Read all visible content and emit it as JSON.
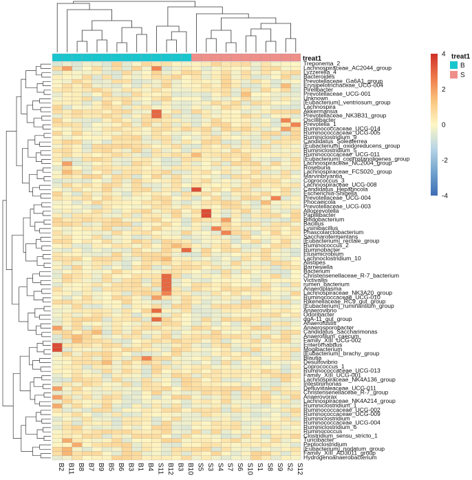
{
  "chart_data": {
    "type": "heatmap",
    "title": "",
    "columns": [
      "B2",
      "B11",
      "B8",
      "B7",
      "B9",
      "B5",
      "B6",
      "B3",
      "B1",
      "B4",
      "S11",
      "B12",
      "B3",
      "B10",
      "S5",
      "S3",
      "S4",
      "S7",
      "S6",
      "S10",
      "S1",
      "S8",
      "S9",
      "S2",
      "S12"
    ],
    "column_groups": [
      "B",
      "B",
      "B",
      "B",
      "B",
      "B",
      "B",
      "B",
      "B",
      "B",
      "B",
      "B",
      "B",
      "B",
      "S",
      "S",
      "S",
      "S",
      "S",
      "S",
      "S",
      "S",
      "S",
      "S",
      "S"
    ],
    "annotation": {
      "title": "treat1",
      "levels": [
        {
          "name": "B",
          "color": "#19C6CE"
        },
        {
          "name": "S",
          "color": "#EE8F8A"
        }
      ]
    },
    "color_scale": {
      "min": -4,
      "max": 4,
      "ticks": [
        4,
        2,
        0,
        -2,
        -4
      ],
      "colors": [
        "#3C6DB4",
        "#73A4CE",
        "#B8D6E6",
        "#FEF6C4",
        "#FBC57F",
        "#EE7A4A",
        "#CF3027"
      ]
    },
    "rows": [
      "Treponema_2",
      "Lachnospiraceae_AC2044_group",
      "Lyzzerella_4",
      "Bacteroides",
      "Prevotellaceae_Ga6A1_group",
      "Erysipelotrichaceae_UCG-004",
      "Pirellbacter",
      "Prevotellaceae_UCG-001",
      "Unknown",
      "[Eubacterium]_ventriosum_group",
      "Lachnospira",
      "Akkermansia",
      "Prevotellaceae_NK3B31_group",
      "Oscillibacter",
      "Prevotella_1",
      "Ruminococcaceae_UCG-014",
      "Ruminococcaceae_UCG-005",
      "Ruminiclostridium_9",
      "Candidatus_Soleaferrea",
      "[Eubacterium]_oxidoreducens_group",
      "Ruminiclostridium_5",
      "Ruminococcaceae_UCG-011",
      "[Eubacterium]_coprostanoligenes_group",
      "Lachnospiraceae_NC2004_group",
      "Roseburia",
      "Lachnospiraceae_FCS020_group",
      "Marvinbryantia",
      "Coprococcus_3",
      "Lachnospiraceae_UCG-008",
      "Candidatus_Hepatincola",
      "Escherichia-Shigella",
      "Prevotellaceae_UCG-004",
      "Phocaeicola",
      "Prevotellaceae_UCG-003",
      "Alloprevotella",
      "Papillibacter",
      "Bifidobacterium",
      "Bacillus",
      "Lysinibacillus",
      "Phascolarctobacterium",
      "Saccharofermentans",
      "[Eubacterium]_rectale_group",
      "Ruminococcus_2",
      "Ruminobacter",
      "Elusimicrobium",
      "Lachnoclostridium_10",
      "Alistipes",
      "Barnesiella",
      "Bacterium",
      "Christensenellaceae_R-7_bacterium",
      "Victivallis",
      "rumen_bacterium",
      "Anaeroplasma",
      "Lachnospiraceae_NK3A20_group",
      "Ruminococcaceae_UCG-010",
      "Rikenellaceae_RC9_gut_group",
      "[Eubacterium]_ruminantium_group",
      "Anaerovibrio",
      "Odoribacter",
      "dgA-11_gut_group",
      "Anaerofustis",
      "Anaerosporobacter",
      "Candidatus_Saccharimonas",
      "Anaerofilum_caecum",
      "Family_XIII_UCG-002",
      "Enterorhabdus",
      "Mogibacterium",
      "[Eubacterium]_brachy_group",
      "Blautia",
      "Desulfovibrio",
      "Coprococcus_1",
      "Ruminococcaceae_UCG-013",
      "Family_XIII_UCG-001",
      "Lachnospiraceae_NK4A136_group",
      "Intestinimonas",
      "Defluviitaleaceae_UCG-011",
      "Christensenellaceae_R-7_group",
      "Anaerovorax",
      "Lachnospiraceae_NK4A214_group",
      "Ruminiclostridium_1",
      "Ruminococcaceae_UCG-002",
      "Ruminococcaceae_UCG-009",
      "Ruminiclostridium",
      "Ruminococcaceae_UCG-004",
      "Ruminiclostridium_6",
      "Ruminococcus",
      "Clostridium_sensu_stricto_1",
      "Turicibacter",
      "Peptoclostridium",
      "[Eubacterium]_nodatum_group",
      "Family_XIII_AD3011_group",
      "Hydrogenoanaerobacterium"
    ],
    "highlights": [
      {
        "row": "Lachnospiraceae_AC2044_group",
        "col": 1,
        "value": 2.0
      },
      {
        "row": "Lachnospiraceae_AC2044_group",
        "col": 10,
        "value": 2.5
      },
      {
        "row": "Erysipelotrichaceae_UCG-004",
        "col": 23,
        "value": 1.5
      },
      {
        "row": "Prevotellaceae_UCG-001",
        "col": 19,
        "value": 1.4
      },
      {
        "row": "Akkermansia",
        "col": 10,
        "value": 3.0
      },
      {
        "row": "Prevotellaceae_NK3B31_group",
        "col": 10,
        "value": 3.0
      },
      {
        "row": "Oscillibacter",
        "col": 23,
        "value": 2.5
      },
      {
        "row": "Prevotella_1",
        "col": 24,
        "value": 2.5
      },
      {
        "row": "Ruminococcaceae_UCG-014",
        "col": 23,
        "value": 2.0
      },
      {
        "row": "Ruminococcaceae_UCG-011",
        "col": 14,
        "value": 1.5
      },
      {
        "row": "Lachnospiraceae_NC2004_group",
        "col": 1,
        "value": 2.0
      },
      {
        "row": "Lachnospiraceae_FCS020_group",
        "col": 1,
        "value": 1.5
      },
      {
        "row": "Candidatus_Hepatincola",
        "col": 14,
        "value": 3.5
      },
      {
        "row": "Prevotellaceae_UCG-004",
        "col": 22,
        "value": 2.5
      },
      {
        "row": "Phocaeicola",
        "col": 21,
        "value": 1.5
      },
      {
        "row": "Alloprevotella",
        "col": 15,
        "value": 3.5
      },
      {
        "row": "Papillibacter",
        "col": 15,
        "value": 3.5
      },
      {
        "row": "Bifidobacterium",
        "col": 17,
        "value": 2.0
      },
      {
        "row": "Lysinibacillus",
        "col": 16,
        "value": 2.5
      },
      {
        "row": "Phascolarctobacterium",
        "col": 17,
        "value": 2.5
      },
      {
        "row": "Ruminococcus_2",
        "col": 12,
        "value": 1.5
      },
      {
        "row": "Ruminobacter",
        "col": 13,
        "value": 3.0
      },
      {
        "row": "Lachnoclostridium_10",
        "col": 11,
        "value": 1.5
      },
      {
        "row": "Christensenellaceae_R-7_bacterium",
        "col": 11,
        "value": 3.0
      },
      {
        "row": "Victivallis",
        "col": 11,
        "value": 3.0
      },
      {
        "row": "rumen_bacterium",
        "col": 11,
        "value": 3.0
      },
      {
        "row": "Anaeroplasma",
        "col": 11,
        "value": 3.0
      },
      {
        "row": "Lachnospiraceae_NK3A20_group",
        "col": 11,
        "value": 2.5
      },
      {
        "row": "Ruminococcaceae_UCG-010",
        "col": 10,
        "value": 2.0
      },
      {
        "row": "Anaerovibrio",
        "col": 10,
        "value": 3.0
      },
      {
        "row": "dgA-11_gut_group",
        "col": 10,
        "value": 3.0
      },
      {
        "row": "Anaerosporobacter",
        "col": 0,
        "value": 2.0
      },
      {
        "row": "Candidatus_Saccharimonas",
        "col": 4,
        "value": 1.5
      },
      {
        "row": "Anaerofilum_caecum",
        "col": 2,
        "value": 1.5
      },
      {
        "row": "Family_XIII_UCG-002",
        "col": 2,
        "value": 1.5
      },
      {
        "row": "Enterorhabdus",
        "col": 0,
        "value": 3.5
      },
      {
        "row": "Mogibacterium",
        "col": 0,
        "value": 3.5
      },
      {
        "row": "Blautia",
        "col": 9,
        "value": 2.5
      },
      {
        "row": "Desulfovibrio",
        "col": 5,
        "value": 1.5
      },
      {
        "row": "Defluviitaleaceae_UCG-011",
        "col": 0,
        "value": 2.0
      },
      {
        "row": "Anaerovorax",
        "col": 0,
        "value": 2.0
      },
      {
        "row": "Ruminiclostridium_1",
        "col": 0,
        "value": 1.8
      },
      {
        "row": "Turicibacter",
        "col": 1,
        "value": 1.8
      },
      {
        "row": "Peptoclostridium",
        "col": 2,
        "value": 1.8
      },
      {
        "row": "[Eubacterium]_nodatum_group",
        "col": 1,
        "value": 1.6
      },
      {
        "row": "Family_XIII_AD3011_group",
        "col": 1,
        "value": 1.6
      }
    ]
  }
}
